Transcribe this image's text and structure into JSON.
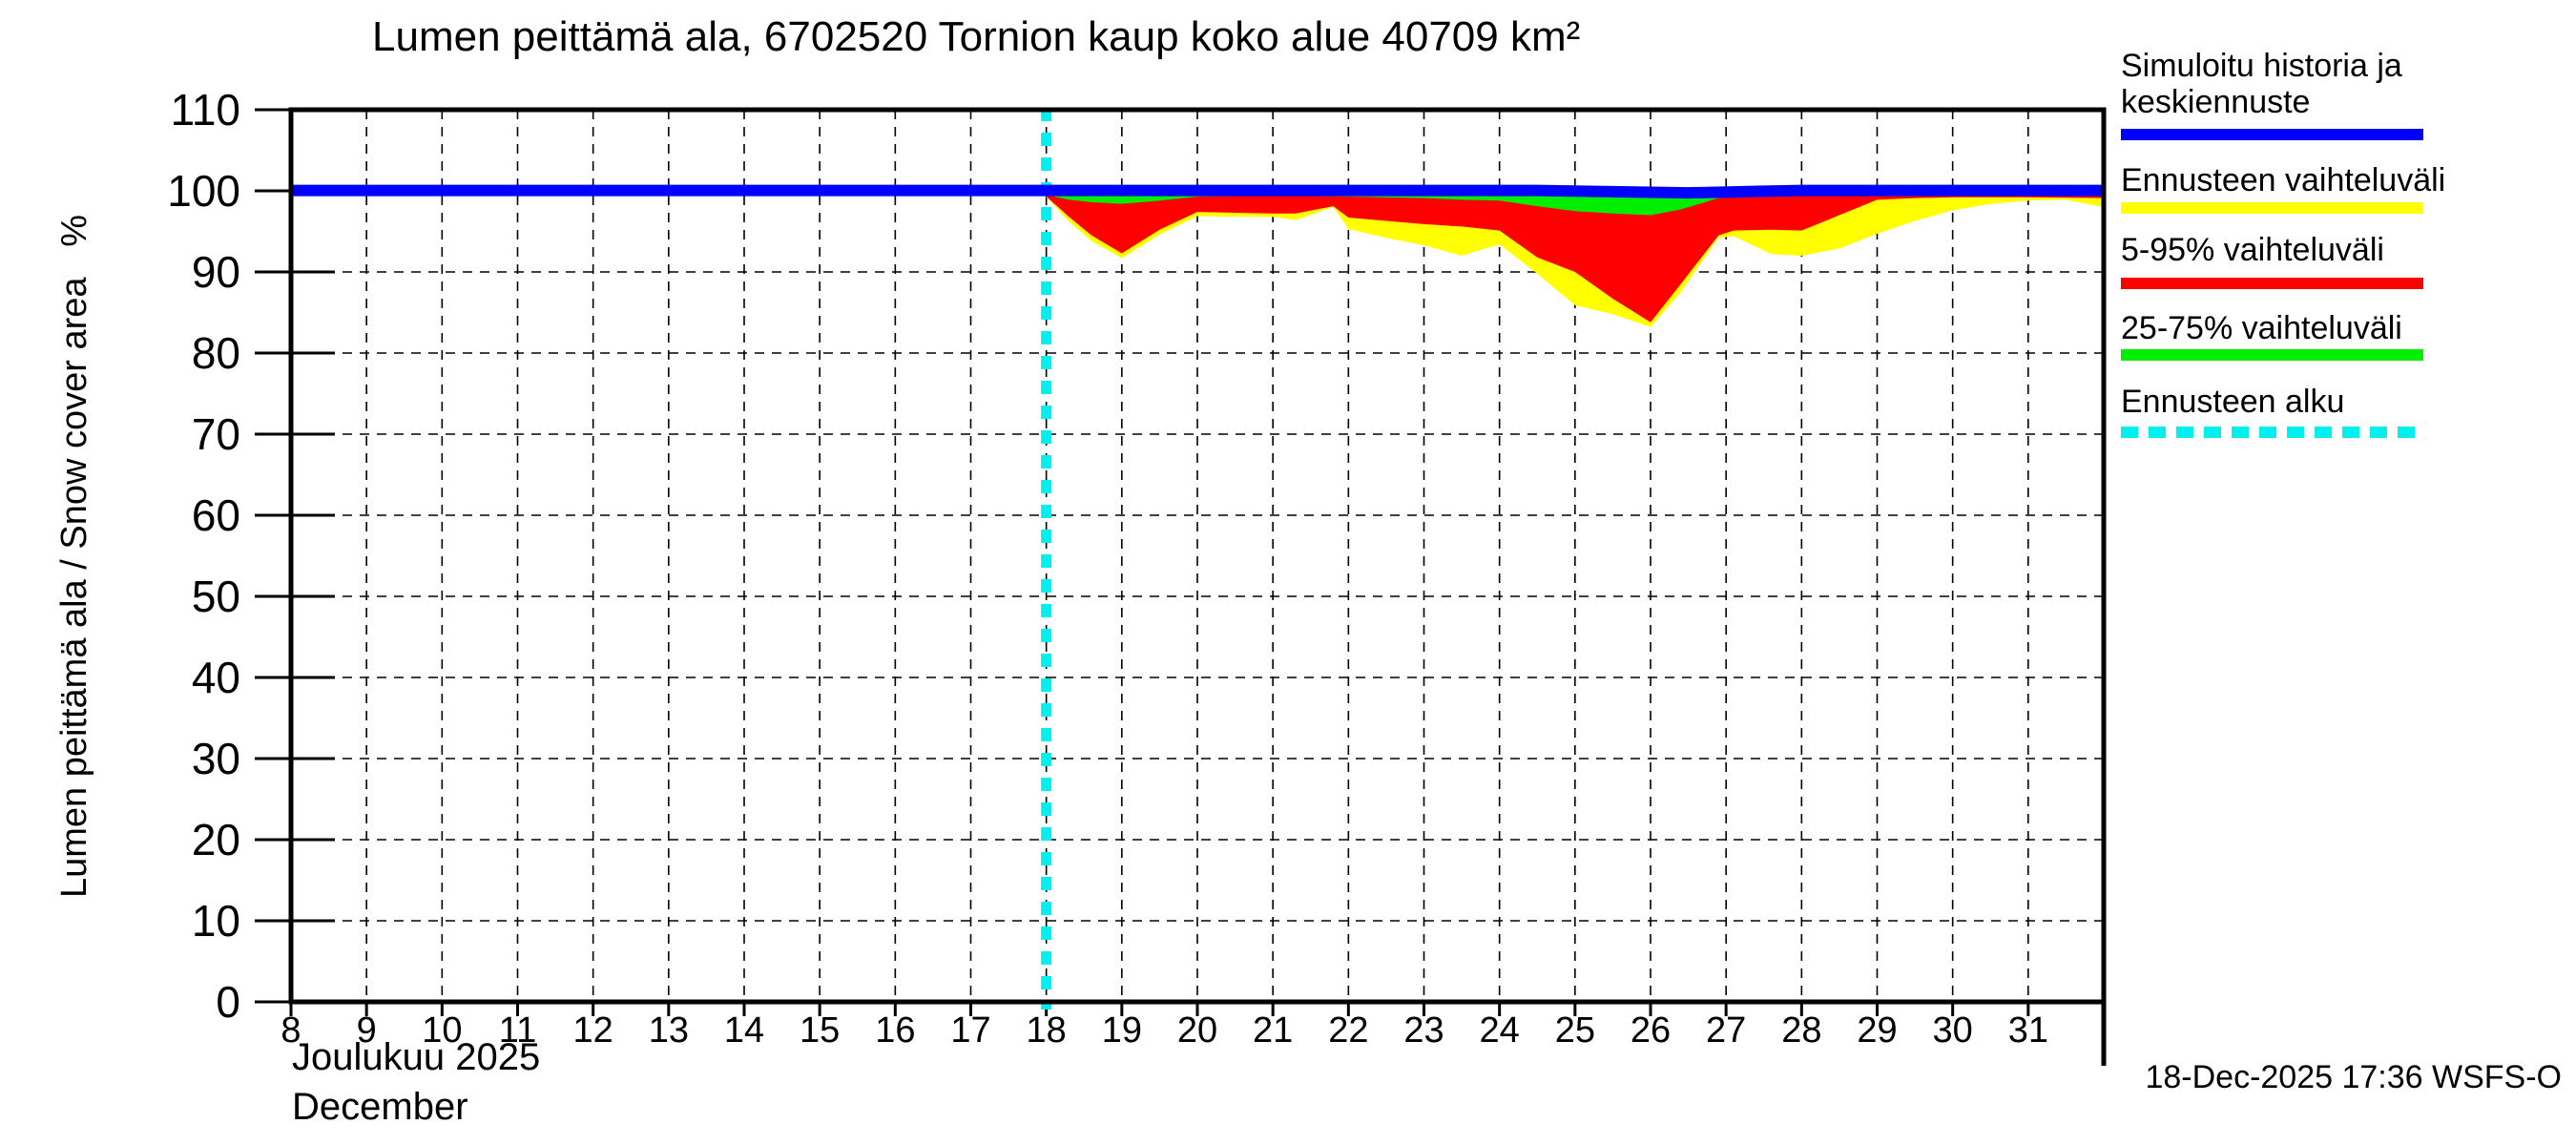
{
  "title": "Lumen peittämä ala, 6702520 Tornion kaup koko alue 40709 km²",
  "y_axis_label": "Lumen peittämä ala / Snow cover area   %",
  "x_axis": {
    "month_fi": "Joulukuu 2025",
    "month_en": "December",
    "tick_labels": [
      8,
      9,
      10,
      11,
      12,
      13,
      14,
      15,
      16,
      17,
      18,
      19,
      20,
      21,
      22,
      23,
      24,
      25,
      26,
      27,
      28,
      29,
      30,
      31
    ]
  },
  "y_axis": {
    "tick_labels": [
      0,
      10,
      20,
      30,
      40,
      50,
      60,
      70,
      80,
      90,
      100,
      110
    ]
  },
  "footer": {
    "timestamp": "18-Dec-2025 17:36 WSFS-O"
  },
  "colors": {
    "median_line": "#0000FF",
    "forecast_range": "#FFFF00",
    "range_5_95": "#FF0000",
    "range_25_75": "#00EE00",
    "forecast_start": "#00F0F0",
    "grid": "#000000",
    "background": "#FFFFFF"
  },
  "legend": [
    {
      "label_lines": [
        "Simuloitu historia ja",
        "keskiennuste"
      ],
      "color": "#0000FF",
      "dashed": false
    },
    {
      "label_lines": [
        "Ennusteen vaihteluväli"
      ],
      "color": "#FFFF00",
      "dashed": false
    },
    {
      "label_lines": [
        "5-95% vaihteluväli"
      ],
      "color": "#FF0000",
      "dashed": false
    },
    {
      "label_lines": [
        "25-75% vaihteluväli"
      ],
      "color": "#00EE00",
      "dashed": false
    },
    {
      "label_lines": [
        "Ennusteen alku"
      ],
      "color": "#00F0F0",
      "dashed": true
    }
  ],
  "chart_data": {
    "type": "area",
    "title": "Lumen peittämä ala, 6702520 Tornion kaup koko alue 40709 km²",
    "xlabel": "Joulukuu 2025 / December",
    "ylabel": "Lumen peittämä ala / Snow cover area %",
    "x_range": [
      8,
      32
    ],
    "y_range": [
      0,
      110
    ],
    "x_ticks": [
      8,
      9,
      10,
      11,
      12,
      13,
      14,
      15,
      16,
      17,
      18,
      19,
      20,
      21,
      22,
      23,
      24,
      25,
      26,
      27,
      28,
      29,
      30,
      31
    ],
    "y_ticks": [
      0,
      10,
      20,
      30,
      40,
      50,
      60,
      70,
      80,
      90,
      100,
      110
    ],
    "grid": true,
    "forecast_start_day": 18,
    "series": [
      {
        "name": "Ennusteen vaihteluväli (min-max)",
        "kind": "band",
        "color": "#FFFF00",
        "upper_value": 100.2,
        "lower_points": [
          [
            18,
            99.2
          ],
          [
            18.3,
            96.2
          ],
          [
            18.6,
            93.8
          ],
          [
            19,
            91.7
          ],
          [
            19.5,
            94.6
          ],
          [
            20,
            96.9
          ],
          [
            20.5,
            96.8
          ],
          [
            21,
            96.8
          ],
          [
            21.3,
            96.4
          ],
          [
            21.8,
            98.0
          ],
          [
            22,
            95.3
          ],
          [
            22.5,
            94.2
          ],
          [
            23,
            93.3
          ],
          [
            23.5,
            92.0
          ],
          [
            24,
            93.4
          ],
          [
            24.5,
            89.8
          ],
          [
            25,
            85.9
          ],
          [
            25.5,
            84.8
          ],
          [
            26,
            83.2
          ],
          [
            26.4,
            87.5
          ],
          [
            26.9,
            94.2
          ],
          [
            27.1,
            94.4
          ],
          [
            27.6,
            92.2
          ],
          [
            28,
            92.0
          ],
          [
            28.5,
            92.9
          ],
          [
            29,
            94.7
          ],
          [
            29.5,
            96.3
          ],
          [
            30,
            97.6
          ],
          [
            30.5,
            98.4
          ],
          [
            31,
            98.8
          ],
          [
            31.5,
            98.9
          ],
          [
            32,
            98.0
          ]
        ]
      },
      {
        "name": "5-95% vaihteluväli",
        "kind": "band",
        "color": "#FF0000",
        "upper_value": 100.2,
        "lower_points": [
          [
            18,
            99.3
          ],
          [
            18.3,
            96.8
          ],
          [
            18.6,
            94.5
          ],
          [
            19,
            92.3
          ],
          [
            19.5,
            95.2
          ],
          [
            20,
            97.4
          ],
          [
            20.5,
            97.3
          ],
          [
            21,
            97.2
          ],
          [
            21.3,
            97.2
          ],
          [
            21.8,
            98.1
          ],
          [
            22,
            96.7
          ],
          [
            22.5,
            96.3
          ],
          [
            23,
            95.9
          ],
          [
            23.5,
            95.6
          ],
          [
            24,
            95.1
          ],
          [
            24.5,
            91.8
          ],
          [
            25,
            90.0
          ],
          [
            25.5,
            86.7
          ],
          [
            26,
            83.8
          ],
          [
            26.4,
            88.5
          ],
          [
            26.9,
            94.5
          ],
          [
            27.1,
            95.1
          ],
          [
            27.6,
            95.2
          ],
          [
            28,
            95.1
          ],
          [
            28.5,
            97.0
          ],
          [
            29,
            98.9
          ],
          [
            29.5,
            99.1
          ],
          [
            30,
            99.2
          ],
          [
            31,
            99.2
          ],
          [
            32,
            99.1
          ]
        ]
      },
      {
        "name": "25-75% vaihteluväli",
        "kind": "band",
        "color": "#00EE00",
        "upper_value": 100.0,
        "lower_points": [
          [
            18,
            99.5
          ],
          [
            18.3,
            98.9
          ],
          [
            18.6,
            98.6
          ],
          [
            19,
            98.4
          ],
          [
            19.5,
            98.8
          ],
          [
            20,
            99.3
          ],
          [
            21,
            99.4
          ],
          [
            22,
            99.3
          ],
          [
            23,
            99.1
          ],
          [
            23.5,
            98.9
          ],
          [
            24,
            98.8
          ],
          [
            24.5,
            98.1
          ],
          [
            25,
            97.5
          ],
          [
            25.5,
            97.2
          ],
          [
            26,
            97.0
          ],
          [
            26.4,
            97.7
          ],
          [
            26.9,
            99.1
          ],
          [
            27.1,
            99.3
          ],
          [
            27.6,
            99.4
          ],
          [
            28,
            99.4
          ],
          [
            30,
            99.4
          ],
          [
            32,
            99.4
          ]
        ]
      },
      {
        "name": "Simuloitu historia ja keskiennuste",
        "kind": "line",
        "color": "#0000FF",
        "points": [
          [
            8,
            100.05
          ],
          [
            24.5,
            100.05
          ],
          [
            25.5,
            99.9
          ],
          [
            26.5,
            99.75
          ],
          [
            27.5,
            99.95
          ],
          [
            28,
            100.05
          ],
          [
            32,
            100.05
          ]
        ]
      }
    ]
  }
}
